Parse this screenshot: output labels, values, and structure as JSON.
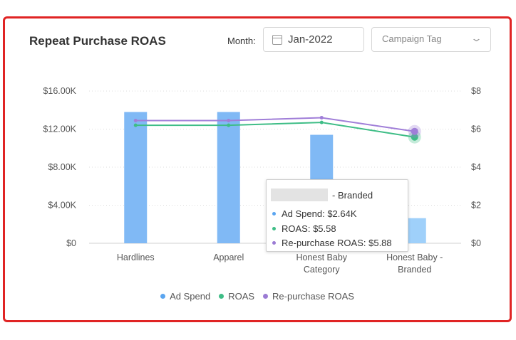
{
  "header": {
    "title": "Repeat Purchase ROAS",
    "month_label": "Month:",
    "month_value": "Jan-2022",
    "tag_placeholder": "Campaign Tag"
  },
  "chart_data": {
    "type": "bar",
    "categories": [
      "Hardlines",
      "Apparel",
      "Honest Baby\nCategory",
      "Honest Baby -\nBranded"
    ],
    "left_axis": {
      "ticks": [
        "$0",
        "$4.00K",
        "$8.00K",
        "$12.00K",
        "$16.00K"
      ],
      "range": [
        0,
        16000
      ]
    },
    "right_axis": {
      "ticks": [
        "$0",
        "$2",
        "$4",
        "$6",
        "$8"
      ],
      "range": [
        0,
        8
      ]
    },
    "series": [
      {
        "name": "Ad Spend",
        "type": "bar",
        "axis": "left",
        "color": "#80b9f5",
        "values": [
          13800,
          13800,
          11400,
          2640
        ]
      },
      {
        "name": "ROAS",
        "type": "line",
        "axis": "right",
        "color": "#3ebd86",
        "values": [
          6.2,
          6.2,
          6.35,
          5.58
        ]
      },
      {
        "name": "Re-purchase ROAS",
        "type": "line",
        "axis": "right",
        "color": "#a07ed8",
        "values": [
          6.45,
          6.45,
          6.6,
          5.88
        ]
      }
    ],
    "highlight_index": 3,
    "grid": "dotted horizontal",
    "legend_position": "bottom"
  },
  "legend": [
    {
      "label": "Ad Spend",
      "color": "#5aa5f0"
    },
    {
      "label": "ROAS",
      "color": "#3ebd86"
    },
    {
      "label": "Re-purchase ROAS",
      "color": "#9b7bd4"
    }
  ],
  "tooltip": {
    "header_suffix": "- Branded",
    "rows": [
      {
        "label": "Ad Spend: $2.64K",
        "color": "#5aa5f0"
      },
      {
        "label": "ROAS: $5.58",
        "color": "#3ebd86"
      },
      {
        "label": "Re-purchase ROAS: $5.88",
        "color": "#9b7bd4"
      }
    ]
  }
}
